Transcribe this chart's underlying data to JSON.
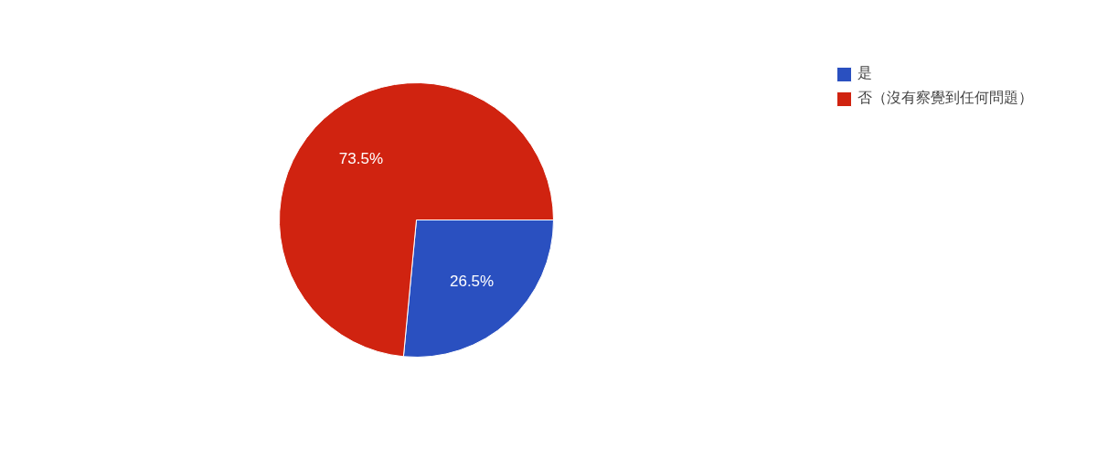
{
  "chart_data": {
    "type": "pie",
    "categories": [
      "是",
      "否（沒有察覺到任何問題）"
    ],
    "values": [
      26.5,
      73.5
    ],
    "colors": [
      "#2a50c0",
      "#d02310"
    ],
    "value_labels": [
      "26.5%",
      "73.5%"
    ],
    "legend": "top right"
  }
}
